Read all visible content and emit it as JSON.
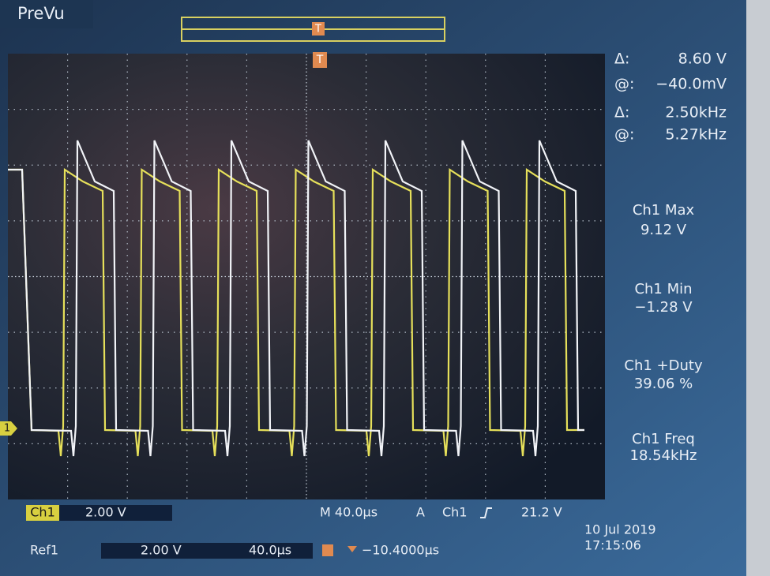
{
  "header": {
    "mode": "PreVu",
    "trigger_marker": "T",
    "channel_marker": "1"
  },
  "cursors": [
    {
      "symbol": "Δ:",
      "value": "8.60 V"
    },
    {
      "symbol": "@:",
      "value": "−40.0mV"
    },
    {
      "symbol": "Δ:",
      "value": "2.50kHz"
    },
    {
      "symbol": "@:",
      "value": "5.27kHz"
    }
  ],
  "measurements": [
    {
      "label": "Ch1 Max",
      "value": "9.12 V"
    },
    {
      "label": "Ch1 Min",
      "value": "−1.28 V"
    },
    {
      "label": "Ch1 +Duty",
      "value": "39.06 %"
    },
    {
      "label": "Ch1 Freq",
      "value": "18.54kHz"
    }
  ],
  "status": {
    "channel": "Ch1",
    "volts_per_div": "2.00 V",
    "timebase": "M 40.0µs",
    "acquire": "A",
    "trigger_source": "Ch1",
    "trigger_level": "21.2 V",
    "date": "10 Jul 2019",
    "time": "17:15:06"
  },
  "reference": {
    "label": "Ref1",
    "volts_per_div": "2.00 V",
    "timebase": "40.0µs",
    "trigger_offset": "−10.4000µs"
  }
}
